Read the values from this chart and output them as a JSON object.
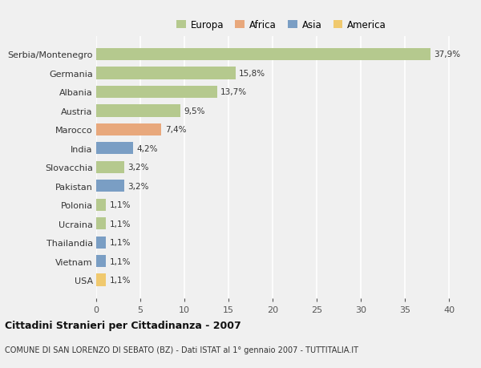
{
  "categories": [
    "Serbia/Montenegro",
    "Germania",
    "Albania",
    "Austria",
    "Marocco",
    "India",
    "Slovacchia",
    "Pakistan",
    "Polonia",
    "Ucraina",
    "Thailandia",
    "Vietnam",
    "USA"
  ],
  "values": [
    37.9,
    15.8,
    13.7,
    9.5,
    7.4,
    4.2,
    3.2,
    3.2,
    1.1,
    1.1,
    1.1,
    1.1,
    1.1
  ],
  "labels": [
    "37,9%",
    "15,8%",
    "13,7%",
    "9,5%",
    "7,4%",
    "4,2%",
    "3,2%",
    "3,2%",
    "1,1%",
    "1,1%",
    "1,1%",
    "1,1%",
    "1,1%"
  ],
  "colors": [
    "#b5c98e",
    "#b5c98e",
    "#b5c98e",
    "#b5c98e",
    "#e8a87c",
    "#7a9ec4",
    "#b5c98e",
    "#7a9ec4",
    "#b5c98e",
    "#b5c98e",
    "#7a9ec4",
    "#7a9ec4",
    "#f0c96e"
  ],
  "legend_labels": [
    "Europa",
    "Africa",
    "Asia",
    "America"
  ],
  "legend_colors": [
    "#b5c98e",
    "#e8a87c",
    "#7a9ec4",
    "#f0c96e"
  ],
  "title": "Cittadini Stranieri per Cittadinanza - 2007",
  "subtitle": "COMUNE DI SAN LORENZO DI SEBATO (BZ) - Dati ISTAT al 1° gennaio 2007 - TUTTITALIA.IT",
  "xlim": [
    0,
    42
  ],
  "xticks": [
    0,
    5,
    10,
    15,
    20,
    25,
    30,
    35,
    40
  ],
  "background_color": "#f0f0f0",
  "grid_color": "#ffffff"
}
